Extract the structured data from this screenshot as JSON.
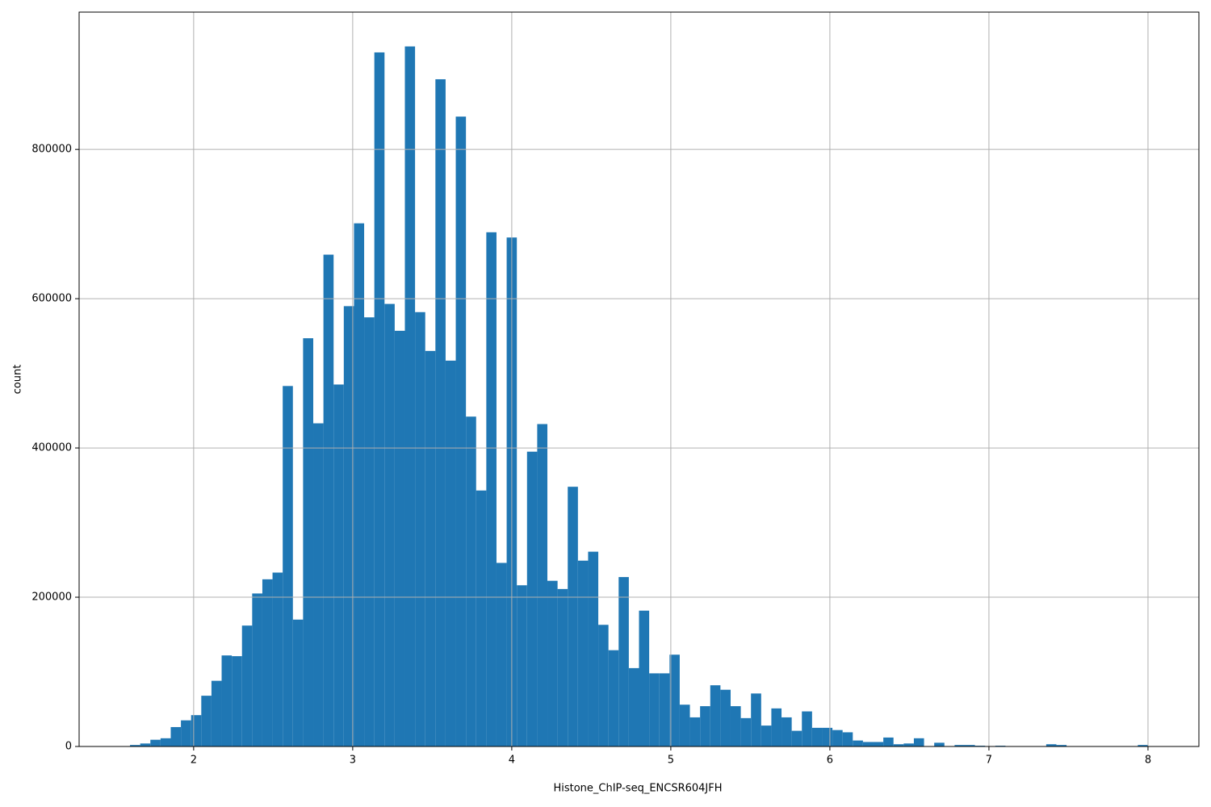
{
  "chart_data": {
    "type": "histogram",
    "xlabel": "Histone_ChIP-seq_ENCSR604JFH",
    "ylabel": "count",
    "color": "#1f77b4",
    "grid": true,
    "bins": [
      1.6,
      1.664,
      1.728,
      1.792,
      1.856,
      1.92,
      1.984,
      2.048,
      2.112,
      2.176,
      2.24,
      2.304,
      2.368,
      2.432,
      2.496,
      2.56,
      2.624,
      2.688,
      2.752,
      2.816,
      2.88,
      2.944,
      3.008,
      3.072,
      3.136,
      3.2,
      3.264,
      3.328,
      3.392,
      3.456,
      3.52,
      3.584,
      3.648,
      3.712,
      3.776,
      3.84,
      3.904,
      3.968,
      4.032,
      4.096,
      4.16,
      4.224,
      4.288,
      4.352,
      4.416,
      4.48,
      4.544,
      4.608,
      4.672,
      4.736,
      4.8,
      4.864,
      4.928,
      4.992,
      5.056,
      5.12,
      5.184,
      5.248,
      5.312,
      5.376,
      5.44,
      5.504,
      5.568,
      5.632,
      5.696,
      5.76,
      5.824,
      5.888,
      5.952,
      6.016,
      6.08,
      6.144,
      6.208,
      6.272,
      6.336,
      6.4,
      6.464,
      6.528,
      6.592,
      6.656,
      6.72,
      6.784,
      6.848,
      6.912,
      6.976,
      7.04,
      7.104,
      7.168,
      7.232,
      7.296,
      7.36,
      7.424,
      7.488,
      7.552,
      7.616,
      7.68,
      7.744,
      7.808,
      7.872,
      7.936,
      8.0
    ],
    "counts": [
      2000,
      4000,
      9000,
      11000,
      26000,
      35000,
      42000,
      68000,
      88000,
      122000,
      121000,
      162000,
      205000,
      224000,
      233000,
      483000,
      170000,
      547000,
      433000,
      659000,
      485000,
      590000,
      701000,
      575000,
      930000,
      593000,
      557000,
      938000,
      582000,
      530000,
      894000,
      517000,
      844000,
      442000,
      343000,
      689000,
      246000,
      682000,
      216000,
      395000,
      432000,
      222000,
      211000,
      348000,
      249000,
      261000,
      163000,
      129000,
      227000,
      105000,
      182000,
      98000,
      98000,
      123000,
      56000,
      39000,
      54000,
      82000,
      76000,
      54000,
      38000,
      71000,
      28000,
      51000,
      39000,
      21000,
      47000,
      25000,
      25000,
      22000,
      19000,
      8000,
      6000,
      6000,
      12000,
      3000,
      4000,
      11000,
      0,
      5000,
      0,
      2000,
      2000,
      1000,
      0,
      1000,
      0,
      0,
      0,
      0,
      3000,
      2000,
      0,
      0,
      0,
      0,
      0,
      0,
      0,
      2000
    ],
    "xlim": [
      1.28,
      8.32
    ],
    "xticks": [
      2,
      3,
      4,
      5,
      6,
      7,
      8
    ],
    "ylim": [
      0,
      984000
    ],
    "yticks": [
      0,
      200000,
      400000,
      600000,
      800000
    ]
  }
}
